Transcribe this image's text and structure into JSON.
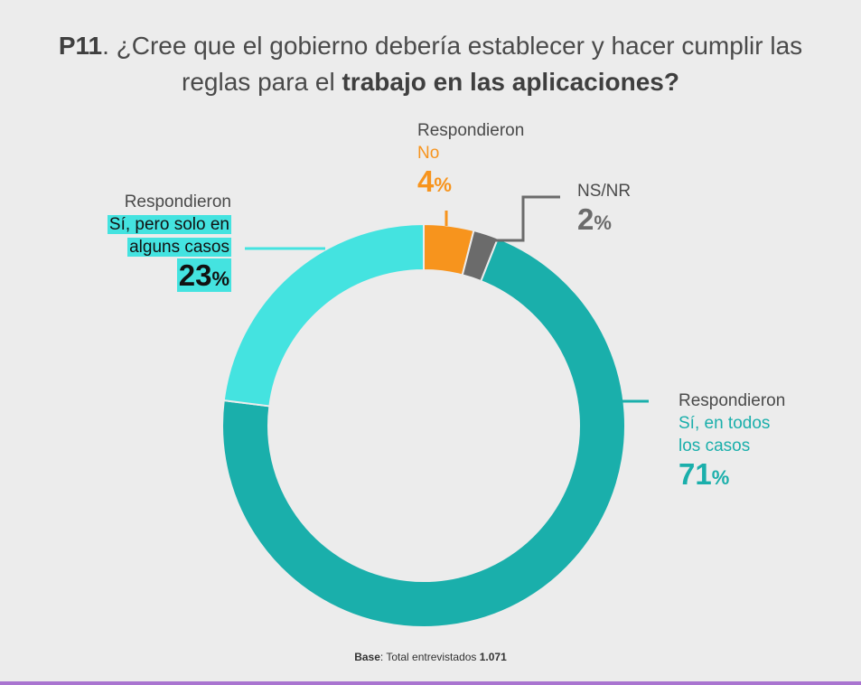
{
  "title": {
    "code": "P11",
    "sep": ". ",
    "text1": "¿Cree que el gobierno debería establecer y hacer cumplir las",
    "text2": "reglas para el ",
    "text2_bold": "trabajo en las aplicaciones?"
  },
  "chart_data": {
    "type": "pie",
    "title": "P11. ¿Cree que el gobierno debería establecer y hacer cumplir las reglas para el trabajo en las aplicaciones?",
    "start_angle_deg": 0,
    "series": [
      {
        "prefix": "Respondieron",
        "name": "No",
        "value": 4,
        "color": "#f7941d"
      },
      {
        "prefix": "",
        "name": "NS/NR",
        "value": 2,
        "color": "#6b6b6b"
      },
      {
        "prefix": "Respondieron",
        "name": "Sí, en todos los casos",
        "value": 71,
        "color": "#1aafab"
      },
      {
        "prefix": "Respondieron",
        "name": "Sí, pero solo en alguns casos",
        "value": 23,
        "color": "#44e3e0"
      }
    ]
  },
  "labels": {
    "no": {
      "prefix": "Respondieron",
      "name": "No",
      "value": "4",
      "unit": "%"
    },
    "nsnr": {
      "name": "NS/NR",
      "value": "2",
      "unit": "%"
    },
    "todos": {
      "prefix": "Respondieron",
      "name_line1": "Sí, en todos",
      "name_line2": "los casos",
      "value": "71",
      "unit": "%"
    },
    "pero": {
      "prefix": "Respondieron",
      "name_line1": "Sí, pero solo en",
      "name_line2": "alguns casos",
      "value": "23",
      "unit": "%"
    }
  },
  "footer": {
    "label": "Base",
    "text": ": Total entrevistados ",
    "value": "1.071"
  }
}
